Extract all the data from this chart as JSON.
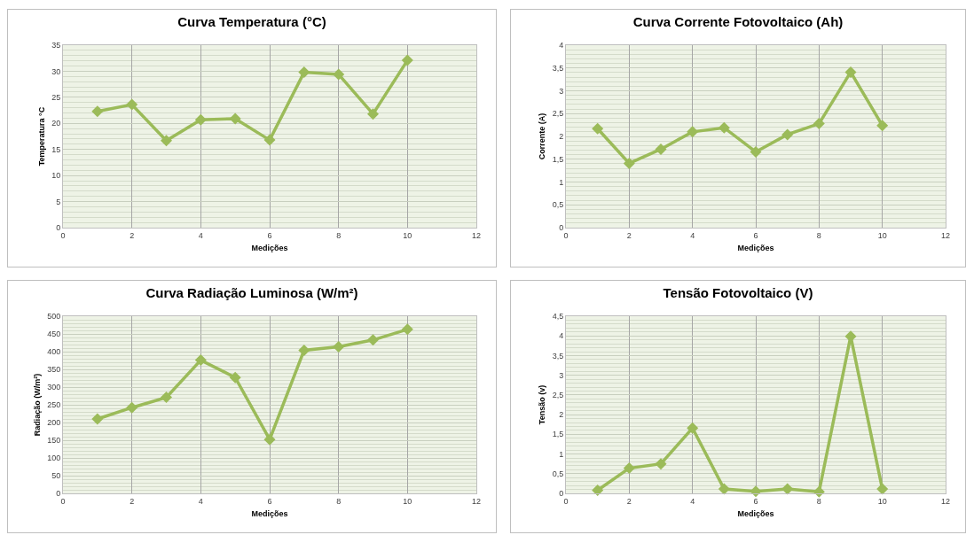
{
  "chart_data": [
    {
      "type": "line",
      "title": "Curva Temperatura (°C)",
      "xlabel": "Medições",
      "ylabel": "Temperatura °C",
      "x": [
        1,
        2,
        3,
        4,
        5,
        6,
        7,
        8,
        9,
        10
      ],
      "series": [
        {
          "color": "#9bbb59",
          "values": [
            22.3,
            23.6,
            16.7,
            20.7,
            20.9,
            16.8,
            29.8,
            29.4,
            21.8,
            32.1
          ]
        }
      ],
      "xlim": [
        0,
        12
      ],
      "xticks": [
        0,
        2,
        4,
        6,
        8,
        10,
        12
      ],
      "ylim": [
        0,
        35
      ],
      "yticks": [
        0,
        5,
        10,
        15,
        20,
        25,
        30,
        35
      ],
      "grid": true,
      "marker": "diamond",
      "line_style": "solid"
    },
    {
      "type": "line",
      "title": "Curva Corrente Fotovoltaico (Ah)",
      "xlabel": "Medições",
      "ylabel": "Corrente (A)",
      "x": [
        1,
        2,
        3,
        4,
        5,
        6,
        7,
        8,
        9,
        10
      ],
      "series": [
        {
          "color": "#9bbb59",
          "values": [
            2.17,
            1.41,
            1.72,
            2.1,
            2.19,
            1.66,
            2.04,
            2.28,
            3.41,
            2.24
          ]
        }
      ],
      "xlim": [
        0,
        12
      ],
      "xticks": [
        0,
        2,
        4,
        6,
        8,
        10,
        12
      ],
      "ylim": [
        0,
        4
      ],
      "yticks": [
        0,
        {
          "value": 0.5,
          "label": "0,5"
        },
        1,
        {
          "value": 1.5,
          "label": "1,5"
        },
        2,
        {
          "value": 2.5,
          "label": "2,5"
        },
        3,
        {
          "value": 3.5,
          "label": "3,5"
        },
        4
      ],
      "grid": true,
      "marker": "diamond",
      "line_style": "solid"
    },
    {
      "type": "line",
      "title": "Curva Radiação Luminosa (W/m²)",
      "xlabel": "Medições",
      "ylabel": "Radiação (W/m²)",
      "x": [
        1,
        2,
        3,
        4,
        5,
        6,
        7,
        8,
        9,
        10
      ],
      "series": [
        {
          "color": "#9bbb59",
          "values": [
            210,
            242,
            271,
            376,
            327,
            152,
            404,
            414,
            433,
            463
          ]
        }
      ],
      "xlim": [
        0,
        12
      ],
      "xticks": [
        0,
        2,
        4,
        6,
        8,
        10,
        12
      ],
      "ylim": [
        0,
        500
      ],
      "yticks": [
        0,
        50,
        100,
        150,
        200,
        250,
        300,
        350,
        400,
        450,
        500
      ],
      "grid": true,
      "marker": "diamond",
      "line_style": "solid"
    },
    {
      "type": "line",
      "title": "Tensão Fotovoltaico (V)",
      "xlabel": "Medições",
      "ylabel": "Tensão (v)",
      "x": [
        1,
        2,
        3,
        4,
        5,
        6,
        7,
        8,
        9,
        10
      ],
      "series": [
        {
          "color": "#9bbb59",
          "values": [
            0.08,
            0.64,
            0.75,
            1.66,
            0.11,
            0.05,
            0.11,
            0.04,
            3.99,
            0.11
          ]
        }
      ],
      "xlim": [
        0,
        12
      ],
      "xticks": [
        0,
        2,
        4,
        6,
        8,
        10,
        12
      ],
      "ylim": [
        0,
        4.5
      ],
      "yticks": [
        0,
        {
          "value": 0.5,
          "label": "0,5"
        },
        1,
        {
          "value": 1.5,
          "label": "1,5"
        },
        2,
        {
          "value": 2.5,
          "label": "2,5"
        },
        3,
        {
          "value": 3.5,
          "label": "3,5"
        },
        4,
        {
          "value": 4.5,
          "label": "4,5"
        }
      ],
      "grid": true,
      "marker": "diamond",
      "line_style": "solid"
    }
  ]
}
